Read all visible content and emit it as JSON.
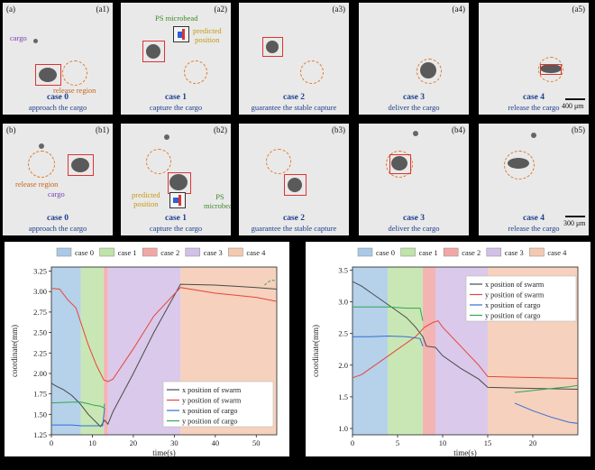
{
  "row_a": {
    "row_label": "(a)",
    "panels": [
      {
        "id": "(a1)",
        "case": "case 0",
        "desc": "approach the cargo"
      },
      {
        "id": "(a2)",
        "case": "case 1",
        "desc": "capture the cargo"
      },
      {
        "id": "(a3)",
        "case": "case 2",
        "desc": "guarantee the stable capture"
      },
      {
        "id": "(a4)",
        "case": "case 3",
        "desc": "deliver the cargo"
      },
      {
        "id": "(a5)",
        "case": "case 4",
        "desc": "release the cargo"
      }
    ],
    "labels": {
      "cargo": "cargo",
      "release_region": "release region",
      "microbead": "PS microbead",
      "predicted": "predicted\nposition"
    },
    "scale": "400 μm"
  },
  "row_b": {
    "row_label": "(b)",
    "panels": [
      {
        "id": "(b1)",
        "case": "case 0",
        "desc": "approach the cargo"
      },
      {
        "id": "(b2)",
        "case": "case 1",
        "desc": "capture the cargo"
      },
      {
        "id": "(b3)",
        "case": "case 2",
        "desc": "guarantee the stable capture"
      },
      {
        "id": "(b4)",
        "case": "case 3",
        "desc": "deliver the cargo"
      },
      {
        "id": "(b5)",
        "case": "case 4",
        "desc": "release the cargo"
      }
    ],
    "labels": {
      "cargo": "cargo",
      "release_region": "release region",
      "predicted": "predicted\nposition",
      "microbead": "PS\nmicrobead"
    },
    "scale": "300 μm"
  },
  "colors": {
    "case0": "#a9c9e6",
    "case1": "#bfe3a8",
    "case2": "#f2a7a7",
    "case3": "#d3c0e6",
    "case4": "#f4c9b1",
    "swarm_x": "#4a4a4a",
    "swarm_y": "#e8443a",
    "cargo_x": "#2f6fd6",
    "cargo_y": "#2fa84e"
  },
  "chart_data": [
    {
      "type": "line",
      "xlabel": "time(s)",
      "ylabel": "coordinate(mm)",
      "xlim": [
        0,
        55
      ],
      "ylim": [
        1.25,
        3.3
      ],
      "xticks": [
        0,
        10,
        20,
        30,
        40,
        50
      ],
      "yticks": [
        1.25,
        1.5,
        1.75,
        2.0,
        2.25,
        2.5,
        2.75,
        3.0,
        3.25
      ],
      "ytick_labels": [
        "1.25",
        "1.50",
        "1.75",
        "2.00",
        "2.25",
        "2.50",
        "2.75",
        "3.00",
        "3.25"
      ],
      "phases": [
        {
          "name": "case 0",
          "start": 0,
          "end": 7.2
        },
        {
          "name": "case 1",
          "start": 7.2,
          "end": 12.8
        },
        {
          "name": "case 2",
          "start": 12.8,
          "end": 13.8
        },
        {
          "name": "case 3",
          "start": 13.8,
          "end": 31.5
        },
        {
          "name": "case 4",
          "start": 31.5,
          "end": 55
        }
      ],
      "legend": [
        "case 0",
        "case 1",
        "case 2",
        "case 3",
        "case 4"
      ],
      "series": [
        {
          "name": "x position of swarm",
          "x": [
            0,
            1,
            3,
            5,
            7,
            9,
            11,
            12,
            13,
            13.8,
            15,
            20,
            25,
            31.5,
            40,
            50,
            55
          ],
          "y": [
            1.88,
            1.85,
            1.8,
            1.73,
            1.63,
            1.5,
            1.4,
            1.35,
            1.43,
            1.38,
            1.53,
            2.0,
            2.5,
            3.09,
            3.08,
            3.05,
            3.03
          ]
        },
        {
          "name": "y position of swarm",
          "x": [
            0,
            2,
            4,
            6,
            7.2,
            9,
            11,
            12.8,
            13.8,
            15,
            20,
            25,
            31.5,
            40,
            50,
            55
          ],
          "y": [
            3.04,
            3.03,
            2.9,
            2.8,
            2.62,
            2.35,
            2.1,
            1.92,
            1.9,
            1.93,
            2.3,
            2.7,
            3.05,
            2.98,
            2.93,
            2.88
          ]
        },
        {
          "name": "x position of cargo",
          "x": [
            0,
            5,
            7.2,
            9,
            11,
            12.5,
            13
          ],
          "y": [
            1.37,
            1.37,
            1.36,
            1.36,
            1.36,
            1.36,
            1.58
          ]
        },
        {
          "name": "y position of cargo",
          "x": [
            0,
            5,
            7.2,
            9,
            10.5,
            12,
            12.8,
            13
          ],
          "y": [
            1.64,
            1.65,
            1.65,
            1.63,
            1.61,
            1.6,
            1.58,
            1.63
          ]
        },
        {
          "name": "cargo_segment_late",
          "x": [
            52,
            53,
            54,
            55
          ],
          "y": [
            3.08,
            3.12,
            3.14,
            3.12
          ]
        }
      ]
    },
    {
      "type": "line",
      "xlabel": "time(s)",
      "ylabel": "coordinate(mm)",
      "xlim": [
        0,
        25
      ],
      "ylim": [
        0.9,
        3.55
      ],
      "xticks": [
        0,
        5,
        10,
        15,
        20
      ],
      "yticks": [
        1.0,
        1.5,
        2.0,
        2.5,
        3.0,
        3.5
      ],
      "ytick_labels": [
        "1.0",
        "1.5",
        "2.0",
        "2.5",
        "3.0",
        "3.5"
      ],
      "phases": [
        {
          "name": "case 0",
          "start": 0,
          "end": 3.9
        },
        {
          "name": "case 1",
          "start": 3.9,
          "end": 7.8
        },
        {
          "name": "case 2",
          "start": 7.8,
          "end": 9.2
        },
        {
          "name": "case 3",
          "start": 9.2,
          "end": 15.0
        },
        {
          "name": "case 4",
          "start": 15.0,
          "end": 25
        }
      ],
      "legend": [
        "case 0",
        "case 1",
        "case 2",
        "case 3",
        "case 4"
      ],
      "series": [
        {
          "name": "x position of swarm",
          "x": [
            0,
            1,
            2,
            3,
            4,
            5,
            6,
            7,
            7.8,
            8.2,
            9.2,
            10,
            12,
            14,
            15,
            18,
            21,
            25
          ],
          "y": [
            3.32,
            3.25,
            3.15,
            3.05,
            2.95,
            2.85,
            2.75,
            2.6,
            2.45,
            2.3,
            2.28,
            2.15,
            1.95,
            1.78,
            1.65,
            1.64,
            1.63,
            1.62
          ]
        },
        {
          "name": "y position of swarm",
          "x": [
            0,
            1,
            2,
            3,
            4,
            5,
            6,
            7,
            8,
            9,
            9.5,
            10,
            12,
            14,
            15,
            18,
            21,
            25
          ],
          "y": [
            1.8,
            1.85,
            1.95,
            2.05,
            2.15,
            2.25,
            2.35,
            2.45,
            2.6,
            2.68,
            2.7,
            2.6,
            2.3,
            2.0,
            1.82,
            1.81,
            1.8,
            1.79
          ]
        },
        {
          "name": "x position of cargo",
          "x": [
            0,
            2,
            4,
            6,
            7.5,
            7.8
          ],
          "y": [
            2.45,
            2.45,
            2.46,
            2.45,
            2.42,
            2.3
          ]
        },
        {
          "name": "y position of cargo",
          "x": [
            0,
            2,
            4,
            6,
            7.5,
            7.8
          ],
          "y": [
            2.92,
            2.92,
            2.92,
            2.9,
            2.9,
            2.7
          ]
        },
        {
          "name": "cargo_x_late",
          "x": [
            18,
            20,
            22,
            24,
            25
          ],
          "y": [
            1.4,
            1.28,
            1.18,
            1.1,
            1.08
          ]
        },
        {
          "name": "cargo_y_late",
          "x": [
            18,
            20,
            22,
            24,
            25
          ],
          "y": [
            1.57,
            1.6,
            1.63,
            1.66,
            1.68
          ]
        }
      ]
    }
  ]
}
